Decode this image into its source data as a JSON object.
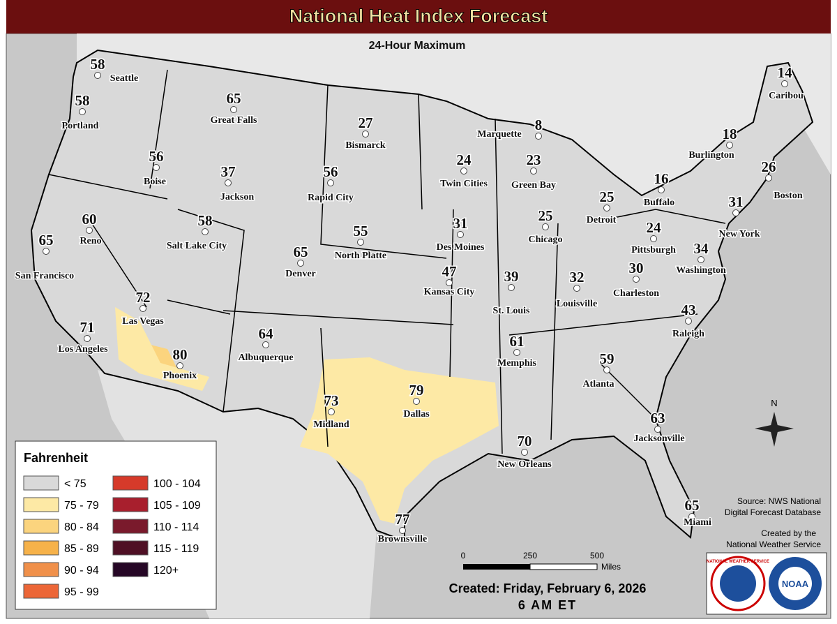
{
  "header": {
    "title": "National Heat Index Forecast",
    "subtitle": "24-Hour Maximum"
  },
  "cities": [
    {
      "name": "Seattle",
      "value": 58
    },
    {
      "name": "Portland",
      "value": 58
    },
    {
      "name": "Great Falls",
      "value": 65
    },
    {
      "name": "Boise",
      "value": 56
    },
    {
      "name": "Jackson",
      "value": 37
    },
    {
      "name": "Bismarck",
      "value": 27
    },
    {
      "name": "Rapid City",
      "value": 56
    },
    {
      "name": "Marquette",
      "value": 8
    },
    {
      "name": "Twin Cities",
      "value": 24
    },
    {
      "name": "Green Bay",
      "value": 23
    },
    {
      "name": "Caribou",
      "value": 14
    },
    {
      "name": "Burlington",
      "value": 18
    },
    {
      "name": "Boston",
      "value": 26
    },
    {
      "name": "Buffalo",
      "value": 16
    },
    {
      "name": "Detroit",
      "value": 25
    },
    {
      "name": "New York",
      "value": 31
    },
    {
      "name": "Reno",
      "value": 60
    },
    {
      "name": "San Francisco",
      "value": 65
    },
    {
      "name": "Salt Lake City",
      "value": 58
    },
    {
      "name": "Denver",
      "value": 65
    },
    {
      "name": "North Platte",
      "value": 55
    },
    {
      "name": "Des Moines",
      "value": 31
    },
    {
      "name": "Chicago",
      "value": 25
    },
    {
      "name": "Pittsburgh",
      "value": 24
    },
    {
      "name": "Washington",
      "value": 34
    },
    {
      "name": "Las Vegas",
      "value": 72
    },
    {
      "name": "Kansas City",
      "value": 47
    },
    {
      "name": "St. Louis",
      "value": 39
    },
    {
      "name": "Louisville",
      "value": 32
    },
    {
      "name": "Charleston",
      "value": 30
    },
    {
      "name": "Raleigh",
      "value": 43
    },
    {
      "name": "Los Angeles",
      "value": 71
    },
    {
      "name": "Phoenix",
      "value": 80
    },
    {
      "name": "Albuquerque",
      "value": 64
    },
    {
      "name": "Memphis",
      "value": 61
    },
    {
      "name": "Atlanta",
      "value": 59
    },
    {
      "name": "Dallas",
      "value": 79
    },
    {
      "name": "Midland",
      "value": 73
    },
    {
      "name": "Jacksonville",
      "value": 63
    },
    {
      "name": "New Orleans",
      "value": 70
    },
    {
      "name": "Miami",
      "value": 65
    },
    {
      "name": "Brownsville",
      "value": 77
    }
  ],
  "legend": {
    "title": "Fahrenheit",
    "items": [
      {
        "label": "< 75",
        "color": "#d9d9d9"
      },
      {
        "label": "75 - 79",
        "color": "#fde9a5"
      },
      {
        "label": "80 - 84",
        "color": "#fbd47e"
      },
      {
        "label": "85 - 89",
        "color": "#f6b24a"
      },
      {
        "label": "90 - 94",
        "color": "#f0904a"
      },
      {
        "label": "95 - 99",
        "color": "#ec6637"
      },
      {
        "label": "100 - 104",
        "color": "#d63a2a"
      },
      {
        "label": "105 - 109",
        "color": "#a81f2d"
      },
      {
        "label": "110 - 114",
        "color": "#7a1a2c"
      },
      {
        "label": "115 - 119",
        "color": "#4f1025"
      },
      {
        "label": "120+",
        "color": "#260726"
      }
    ]
  },
  "scale": {
    "labels": [
      "0",
      "250",
      "500"
    ],
    "unit": "Miles"
  },
  "compass": "N",
  "credits": {
    "source": [
      "Source: NWS National",
      "Digital Forecast Database"
    ],
    "created_by": [
      "Created by the",
      "National Weather Service"
    ],
    "created": "Created: Friday, February 6, 2026",
    "time": "6 AM ET"
  },
  "logos": {
    "nws": "NATIONAL WEATHER SERVICE",
    "noaa": "NOAA"
  }
}
